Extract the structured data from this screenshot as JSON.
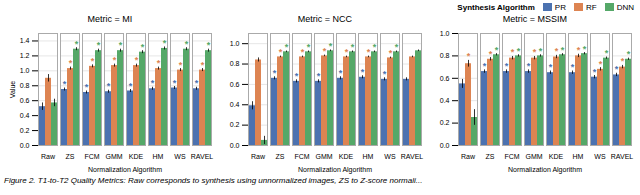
{
  "caption": "Figure 2. T1-to-T2 Quality Metrics: Raw corresponds to synthesis using unnormalized images, ZS to Z-score normali...",
  "chart_data": [
    {
      "type": "bar",
      "title": "Metric = MI",
      "xlabel": "Normalization Algorithm",
      "ylabel": "Value",
      "categories": [
        "Raw",
        "ZS",
        "FCM",
        "GMM",
        "KDE",
        "HM",
        "WS",
        "RAVEL"
      ],
      "series": [
        {
          "name": "PR",
          "color": "#4c72b0",
          "values": [
            0.52,
            0.75,
            0.71,
            0.72,
            0.73,
            0.76,
            0.77,
            0.76
          ],
          "errors": [
            0.05,
            0.02,
            0.02,
            0.02,
            0.02,
            0.02,
            0.02,
            0.02
          ],
          "annotations": [
            null,
            "*",
            "*",
            "*",
            "*",
            "*",
            "*",
            "*"
          ]
        },
        {
          "name": "RF",
          "color": "#dd8452",
          "values": [
            0.9,
            1.03,
            1.06,
            1.07,
            1.07,
            1.03,
            1.01,
            1.01
          ],
          "errors": [
            0.05,
            0.02,
            0.02,
            0.02,
            0.02,
            0.02,
            0.02,
            0.02
          ],
          "annotations": [
            null,
            "*",
            "*",
            "*",
            "*",
            "*",
            "*",
            "*"
          ]
        },
        {
          "name": "DNN",
          "color": "#55a868",
          "values": [
            0.57,
            1.29,
            1.27,
            1.27,
            1.25,
            1.3,
            1.29,
            1.27
          ],
          "errors": [
            0.05,
            0.02,
            0.02,
            0.02,
            0.02,
            0.02,
            0.02,
            0.02
          ],
          "annotations": [
            null,
            "*",
            "*",
            "*",
            "*",
            "*",
            "*",
            "*"
          ]
        }
      ],
      "ylim": [
        0,
        1.5
      ],
      "yticks": [
        {
          "value": 0,
          "label": "0.0"
        },
        0.2,
        0.4,
        0.6,
        0.8,
        {
          "value": 1,
          "label": "1.0"
        },
        1.2,
        1.4
      ],
      "grid": true
    },
    {
      "type": "bar",
      "title": "Metric = NCC",
      "xlabel": "Normalization Algorithm",
      "categories": [
        "Raw",
        "ZS",
        "FCM",
        "GMM",
        "KDE",
        "HM",
        "WS",
        "RAVEL"
      ],
      "series": [
        {
          "name": "PR",
          "color": "#4c72b0",
          "values": [
            0.39,
            0.66,
            0.63,
            0.63,
            0.66,
            0.67,
            0.65,
            0.65
          ],
          "errors": [
            0.04,
            0.015,
            0.015,
            0.015,
            0.015,
            0.015,
            0.015,
            0.015
          ],
          "annotations": [
            null,
            "*",
            "*",
            "*",
            "*",
            "*",
            "*",
            null
          ]
        },
        {
          "name": "RF",
          "color": "#dd8452",
          "values": [
            0.84,
            0.87,
            0.87,
            0.88,
            0.87,
            0.87,
            0.86,
            0.87
          ],
          "errors": [
            0.02,
            0.008,
            0.008,
            0.008,
            0.008,
            0.008,
            0.008,
            0.008
          ],
          "annotations": [
            null,
            "*",
            "*",
            "*",
            "*",
            "*",
            "*",
            null
          ]
        },
        {
          "name": "DNN",
          "color": "#55a868",
          "values": [
            0.05,
            0.92,
            0.92,
            0.93,
            0.92,
            0.92,
            0.92,
            0.93
          ],
          "errors": [
            0.04,
            0.008,
            0.008,
            0.008,
            0.008,
            0.008,
            0.008,
            0.008
          ],
          "annotations": [
            null,
            "*",
            "*",
            "*",
            "*",
            "*",
            "*",
            null
          ]
        }
      ],
      "ylim": [
        0,
        1.1
      ],
      "yticks": [
        {
          "value": 0,
          "label": "0.0"
        },
        0.2,
        0.4,
        0.6,
        0.8,
        {
          "value": 1,
          "label": "1.0"
        }
      ],
      "grid": true
    },
    {
      "type": "bar",
      "title": "Metric = MSSIM",
      "xlabel": "Normalization Algorithm",
      "categories": [
        "Raw",
        "ZS",
        "FCM",
        "GMM",
        "KDE",
        "HM",
        "WS",
        "RAVEL"
      ],
      "series": [
        {
          "name": "PR",
          "color": "#4c72b0",
          "values": [
            0.55,
            0.66,
            0.66,
            0.66,
            0.65,
            0.65,
            0.61,
            0.63
          ],
          "errors": [
            0.04,
            0.015,
            0.015,
            0.015,
            0.015,
            0.015,
            0.015,
            0.015
          ],
          "annotations": [
            null,
            "*",
            "*",
            "*",
            "*",
            "*",
            "*",
            "*"
          ]
        },
        {
          "name": "RF",
          "color": "#dd8452",
          "values": [
            0.73,
            0.77,
            0.78,
            0.78,
            0.79,
            0.8,
            0.68,
            0.7
          ],
          "errors": [
            0.03,
            0.015,
            0.015,
            0.015,
            0.015,
            0.015,
            0.015,
            0.015
          ],
          "annotations": [
            "*",
            "*",
            "*",
            "*",
            "*",
            "*",
            "*",
            "*"
          ]
        },
        {
          "name": "DNN",
          "color": "#55a868",
          "values": [
            0.25,
            0.81,
            0.8,
            0.8,
            0.81,
            0.82,
            0.78,
            0.77
          ],
          "errors": [
            0.07,
            0.01,
            0.01,
            0.01,
            0.01,
            0.01,
            0.01,
            0.01
          ],
          "annotations": [
            null,
            "*",
            "*",
            "*",
            "*",
            "*",
            "*",
            "*"
          ]
        }
      ],
      "ylim": [
        0,
        1.0
      ],
      "yticks": [
        {
          "value": 0,
          "label": "0.0"
        },
        0.2,
        0.4,
        0.6,
        0.8,
        {
          "value": 1,
          "label": "1.0"
        }
      ],
      "grid": true,
      "legend": "upper right",
      "legend_title": "Synthesis Algorithm"
    }
  ]
}
